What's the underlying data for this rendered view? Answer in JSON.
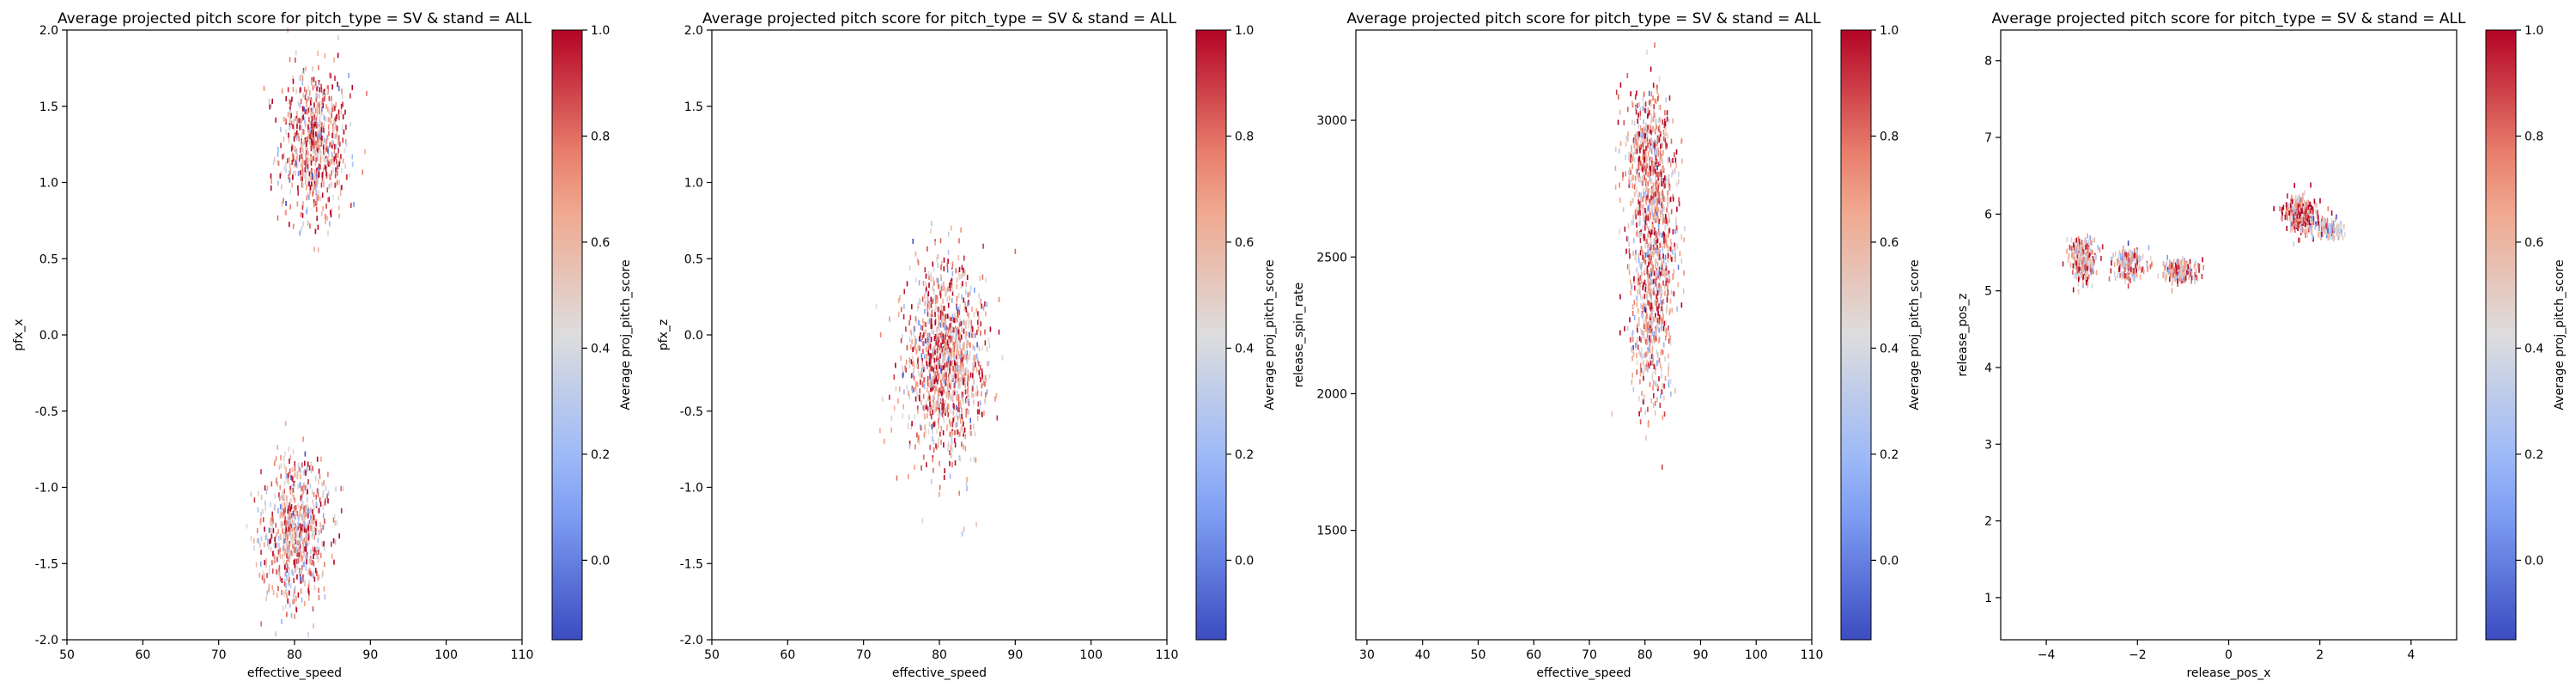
{
  "chart_data": [
    {
      "type": "heatmap",
      "title": "Average projected pitch score for pitch_type = SV & stand = ALL",
      "xlabel": "effective_speed",
      "ylabel": "pfx_x",
      "xlim": [
        50,
        110
      ],
      "ylim": [
        -2.0,
        2.0
      ],
      "xticks": [
        "50",
        "60",
        "70",
        "80",
        "90",
        "100",
        "110"
      ],
      "yticks": [
        "-2.0",
        "-1.5",
        "-1.0",
        "-0.5",
        "0.0",
        "0.5",
        "1.0",
        "1.5",
        "2.0"
      ],
      "grid": false,
      "colormap": "coolwarm",
      "colorbar": {
        "label": "Average proj_pitch_score",
        "range": [
          -0.15,
          1.0
        ],
        "ticks": [
          "0.0",
          "0.2",
          "0.4",
          "0.6",
          "0.8",
          "1.0"
        ]
      },
      "clusters": [
        {
          "x_mean": 82.5,
          "y_mean": 1.25,
          "x_sd": 2.3,
          "y_sd": 0.25,
          "count": 700,
          "score_mean": 0.68
        },
        {
          "x_mean": 80.0,
          "y_mean": -1.3,
          "x_sd": 2.2,
          "y_sd": 0.25,
          "count": 700,
          "score_mean": 0.66
        }
      ]
    },
    {
      "type": "heatmap",
      "title": "Average projected pitch score for pitch_type = SV & stand = ALL",
      "xlabel": "effective_speed",
      "ylabel": "pfx_z",
      "xlim": [
        50,
        110
      ],
      "ylim": [
        -2.0,
        2.0
      ],
      "xticks": [
        "50",
        "60",
        "70",
        "80",
        "90",
        "100",
        "110"
      ],
      "yticks": [
        "-2.0",
        "-1.5",
        "-1.0",
        "-0.5",
        "0.0",
        "0.5",
        "1.0",
        "1.5",
        "2.0"
      ],
      "grid": false,
      "colormap": "coolwarm",
      "colorbar": {
        "label": "Average proj_pitch_score",
        "range": [
          -0.15,
          1.0
        ],
        "ticks": [
          "0.0",
          "0.2",
          "0.4",
          "0.6",
          "0.8",
          "1.0"
        ]
      },
      "clusters": [
        {
          "x_mean": 80.5,
          "y_mean": -0.15,
          "x_sd": 2.6,
          "y_sd": 0.32,
          "count": 1200,
          "score_mean": 0.66
        }
      ]
    },
    {
      "type": "heatmap",
      "title": "Average projected pitch score for pitch_type = SV & stand = ALL",
      "xlabel": "effective_speed",
      "ylabel": "release_spin_rate",
      "xlim": [
        28,
        110
      ],
      "ylim": [
        1100,
        3330
      ],
      "xticks": [
        "30",
        "40",
        "50",
        "60",
        "70",
        "80",
        "90",
        "100",
        "110"
      ],
      "yticks": [
        "1500",
        "2000",
        "2500",
        "3000"
      ],
      "grid": false,
      "colormap": "coolwarm",
      "colorbar": {
        "label": "Average proj_pitch_score",
        "range": [
          -0.15,
          1.0
        ],
        "ticks": [
          "0.0",
          "0.2",
          "0.4",
          "0.6",
          "0.8",
          "1.0"
        ]
      },
      "clusters": [
        {
          "x_mean": 80.5,
          "y_mean": 2850,
          "x_sd": 2.0,
          "y_sd": 130,
          "count": 500,
          "score_mean": 0.7
        },
        {
          "x_mean": 82.5,
          "y_mean": 2600,
          "x_sd": 2.0,
          "y_sd": 150,
          "count": 300,
          "score_mean": 0.68
        },
        {
          "x_mean": 81.0,
          "y_mean": 2280,
          "x_sd": 2.0,
          "y_sd": 160,
          "count": 500,
          "score_mean": 0.62
        }
      ]
    },
    {
      "type": "heatmap",
      "title": "Average projected pitch score for pitch_type = SV & stand = ALL",
      "xlabel": "release_pos_x",
      "ylabel": "release_pos_z",
      "xlim": [
        -5.0,
        5.0
      ],
      "ylim": [
        0.45,
        8.4
      ],
      "xticks": [
        "−4",
        "−2",
        "0",
        "2",
        "4"
      ],
      "yticks": [
        "1",
        "2",
        "3",
        "4",
        "5",
        "6",
        "7",
        "8"
      ],
      "grid": false,
      "colormap": "coolwarm",
      "colorbar": {
        "label": "Average proj_pitch_score",
        "range": [
          -0.15,
          1.0
        ],
        "ticks": [
          "0.0",
          "0.2",
          "0.4",
          "0.6",
          "0.8",
          "1.0"
        ]
      },
      "clusters": [
        {
          "x_mean": -3.2,
          "y_mean": 5.4,
          "x_sd": 0.15,
          "y_sd": 0.15,
          "count": 250,
          "score_mean": 0.62
        },
        {
          "x_mean": -2.2,
          "y_mean": 5.35,
          "x_sd": 0.15,
          "y_sd": 0.1,
          "count": 200,
          "score_mean": 0.6
        },
        {
          "x_mean": -1.1,
          "y_mean": 5.25,
          "x_sd": 0.18,
          "y_sd": 0.08,
          "count": 200,
          "score_mean": 0.62
        },
        {
          "x_mean": 1.6,
          "y_mean": 6.0,
          "x_sd": 0.2,
          "y_sd": 0.12,
          "count": 300,
          "score_mean": 0.75
        },
        {
          "x_mean": 2.2,
          "y_mean": 5.8,
          "x_sd": 0.18,
          "y_sd": 0.06,
          "count": 120,
          "score_mean": 0.5
        }
      ]
    }
  ]
}
